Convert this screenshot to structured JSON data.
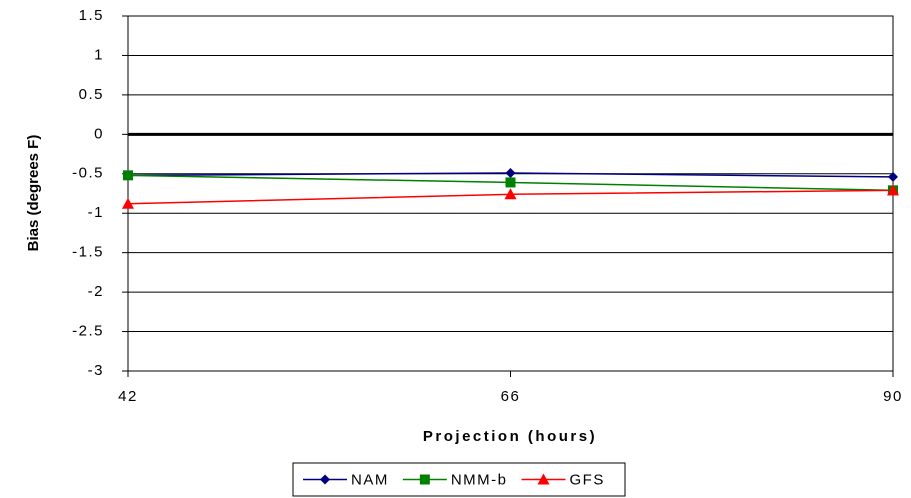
{
  "chart_data": {
    "type": "line",
    "x_label": "Projection (hours)",
    "y_label": "Bias (degrees F)",
    "x": [
      42,
      66,
      90
    ],
    "xlim": [
      42,
      90
    ],
    "xticks": [
      42,
      66,
      90
    ],
    "ylim": [
      -3,
      1.5
    ],
    "yticks": [
      -3,
      -2.5,
      -2,
      -1.5,
      -1,
      -0.5,
      0,
      0.5,
      1,
      1.5
    ],
    "grid": true,
    "zero_line": true,
    "legend": "bottom",
    "series": [
      {
        "name": "NAM",
        "color": "#000080",
        "marker": "diamond",
        "values": [
          -0.52,
          -0.49,
          -0.54
        ]
      },
      {
        "name": "NMM-b",
        "color": "#008000",
        "marker": "square",
        "values": [
          -0.52,
          -0.61,
          -0.71
        ]
      },
      {
        "name": "GFS",
        "color": "#ff0000",
        "marker": "triangle",
        "values": [
          -0.88,
          -0.76,
          -0.71
        ]
      }
    ]
  }
}
